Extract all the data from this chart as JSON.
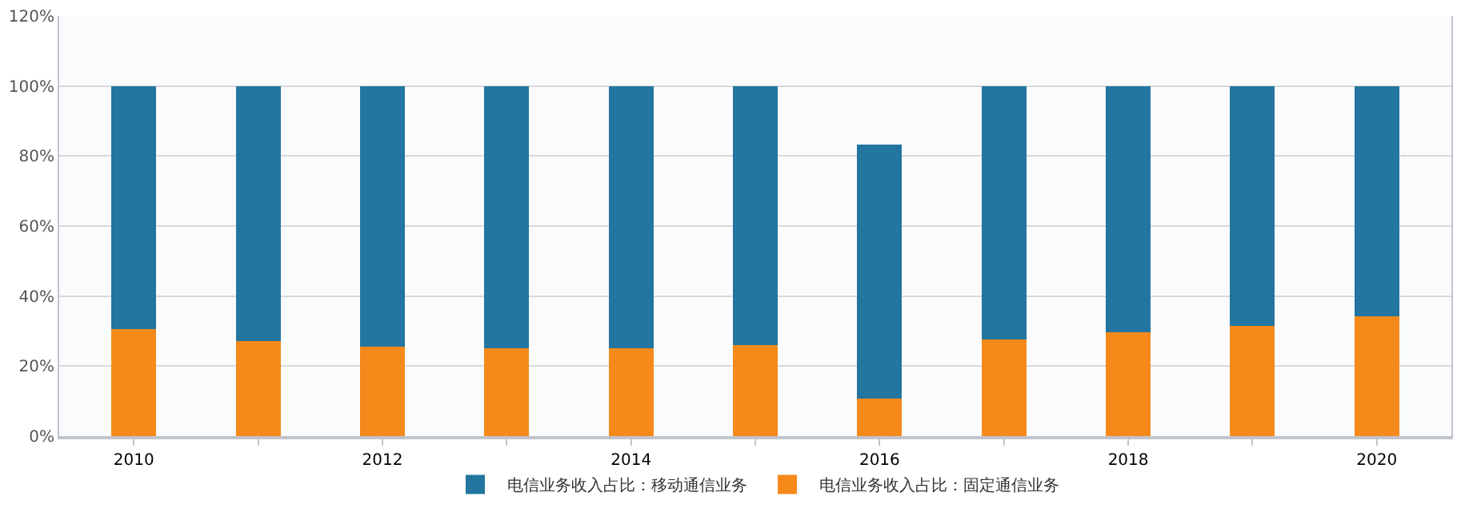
{
  "chart_data": {
    "type": "bar",
    "stacked": true,
    "x": [
      2010,
      2011,
      2012,
      2013,
      2014,
      2015,
      2016,
      2017,
      2018,
      2019,
      2020
    ],
    "series": [
      {
        "name": "电信业务收入占比：固定通信业务",
        "color": "#f5891a",
        "values": [
          30.5,
          27.2,
          25.5,
          25.2,
          25.2,
          25.9,
          10.7,
          27.6,
          29.6,
          31.5,
          34.3
        ]
      },
      {
        "name": "电信业务收入占比：移动通信业务",
        "color": "#22769f",
        "values": [
          69.5,
          72.8,
          74.5,
          74.8,
          74.8,
          74.1,
          72.5,
          72.4,
          70.4,
          68.5,
          65.7
        ]
      }
    ],
    "xlim": [
      2009.4,
      2020.6
    ],
    "xticks": [
      2010,
      {
        "value": 2011,
        "label": null
      },
      2012,
      {
        "value": 2013,
        "label": null
      },
      2014,
      {
        "value": 2015,
        "label": null
      },
      2016,
      {
        "value": 2017,
        "label": null
      },
      2018,
      {
        "value": 2019,
        "label": null
      },
      2020
    ],
    "ylim": [
      0,
      120
    ],
    "yticks": [
      {
        "value": 0,
        "label": "0%"
      },
      {
        "value": 20,
        "label": "20%"
      },
      {
        "value": 40,
        "label": "40%"
      },
      {
        "value": 60,
        "label": "60%"
      },
      {
        "value": 80,
        "label": "80%"
      },
      {
        "value": 100,
        "label": "100%"
      },
      {
        "value": 120,
        "label": "120%"
      }
    ],
    "grid": "y",
    "legend": "bottom"
  }
}
